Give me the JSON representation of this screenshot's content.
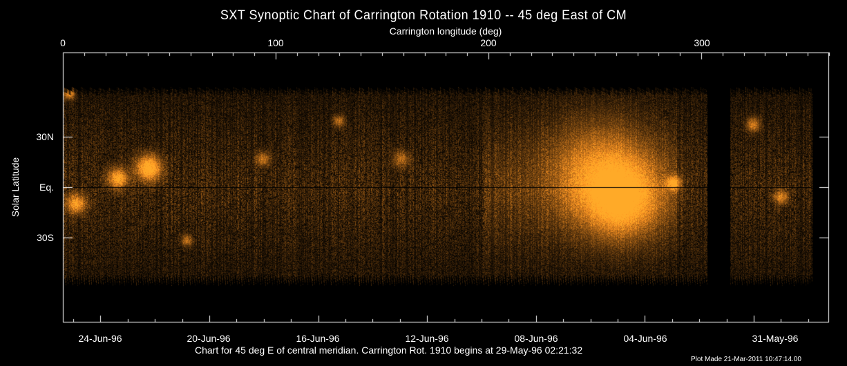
{
  "chart_data": {
    "type": "heatmap",
    "title": "SXT Synoptic Chart of Carrington Rotation 1910 -- 45 deg East of CM",
    "xlabel": "Carrington longitude (deg)",
    "ylabel": "Solar Latitude",
    "xlim": [
      0,
      360
    ],
    "x_ticks": [
      "0",
      "100",
      "200",
      "300"
    ],
    "y_ticks": [
      "30N",
      "Eq.",
      "30S"
    ],
    "date_ticks": [
      "24-Jun-96",
      "20-Jun-96",
      "16-Jun-96",
      "12-Jun-96",
      "08-Jun-96",
      "04-Jun-96",
      "31-May-96"
    ],
    "colormap": "black-orange",
    "footer": "Chart for 45 deg E of central meridian.  Carrington Rot. 1910 begins at 29-May-96 02:21:32",
    "plot_made": "Plot Made 21-Mar-2011 10:47:14.00"
  },
  "colors": {
    "accent": "#f0a020",
    "axis": "#ffffff",
    "background": "#000000"
  }
}
